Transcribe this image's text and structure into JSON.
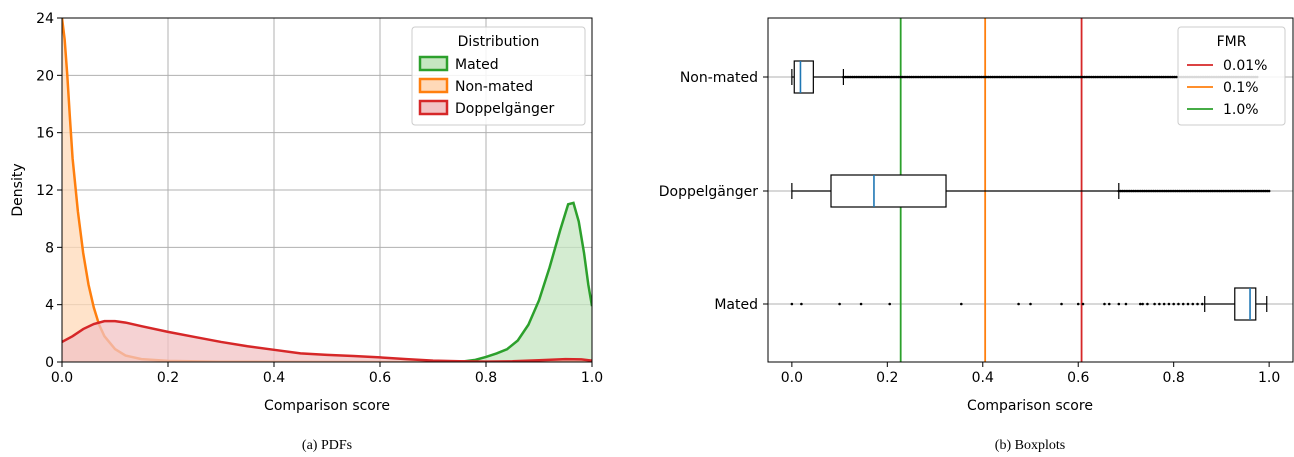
{
  "chart_data": [
    {
      "type": "area",
      "caption": "(a)  PDFs",
      "xlabel": "Comparison score",
      "ylabel": "Density",
      "xlim": [
        0,
        1
      ],
      "ylim": [
        0,
        24
      ],
      "xticks": [
        0,
        0.2,
        0.4,
        0.6,
        0.8,
        1.0
      ],
      "xtick_labels": [
        "0.0",
        "0.2",
        "0.4",
        "0.6",
        "0.8",
        "1.0"
      ],
      "yticks": [
        0,
        4,
        8,
        12,
        16,
        20,
        24
      ],
      "ytick_labels": [
        "0",
        "4",
        "8",
        "12",
        "16",
        "20",
        "24"
      ],
      "grid": true,
      "legend": {
        "title": "Distribution",
        "placement": "top-right"
      },
      "series": [
        {
          "name": "Mated",
          "color": "#2ca02c",
          "fill": "#c6e6c1",
          "points": [
            [
              0.74,
              0
            ],
            [
              0.76,
              0.05
            ],
            [
              0.78,
              0.15
            ],
            [
              0.8,
              0.35
            ],
            [
              0.82,
              0.6
            ],
            [
              0.84,
              0.9
            ],
            [
              0.86,
              1.5
            ],
            [
              0.88,
              2.6
            ],
            [
              0.9,
              4.3
            ],
            [
              0.92,
              6.6
            ],
            [
              0.94,
              9.2
            ],
            [
              0.955,
              11.0
            ],
            [
              0.965,
              11.1
            ],
            [
              0.975,
              9.8
            ],
            [
              0.985,
              7.6
            ],
            [
              0.993,
              5.4
            ],
            [
              1.0,
              3.9
            ]
          ]
        },
        {
          "name": "Non-mated",
          "color": "#ff7f0e",
          "fill": "#ffd9b8",
          "points": [
            [
              0.0,
              24
            ],
            [
              0.005,
              22.5
            ],
            [
              0.01,
              20
            ],
            [
              0.015,
              17
            ],
            [
              0.02,
              14.2
            ],
            [
              0.03,
              10.5
            ],
            [
              0.04,
              7.6
            ],
            [
              0.05,
              5.4
            ],
            [
              0.06,
              3.8
            ],
            [
              0.07,
              2.6
            ],
            [
              0.08,
              1.8
            ],
            [
              0.1,
              0.9
            ],
            [
              0.12,
              0.45
            ],
            [
              0.15,
              0.2
            ],
            [
              0.2,
              0.08
            ],
            [
              0.3,
              0.02
            ],
            [
              0.4,
              0.01
            ],
            [
              0.6,
              0
            ],
            [
              1.0,
              0
            ]
          ]
        },
        {
          "name": "Doppelgänger",
          "color": "#d62728",
          "fill": "#f2c3c4",
          "points": [
            [
              0.0,
              1.4
            ],
            [
              0.02,
              1.8
            ],
            [
              0.04,
              2.3
            ],
            [
              0.06,
              2.65
            ],
            [
              0.08,
              2.85
            ],
            [
              0.1,
              2.85
            ],
            [
              0.12,
              2.75
            ],
            [
              0.15,
              2.5
            ],
            [
              0.2,
              2.1
            ],
            [
              0.25,
              1.75
            ],
            [
              0.3,
              1.4
            ],
            [
              0.35,
              1.1
            ],
            [
              0.4,
              0.85
            ],
            [
              0.45,
              0.6
            ],
            [
              0.5,
              0.5
            ],
            [
              0.55,
              0.42
            ],
            [
              0.6,
              0.32
            ],
            [
              0.65,
              0.2
            ],
            [
              0.7,
              0.1
            ],
            [
              0.75,
              0.05
            ],
            [
              0.8,
              0.03
            ],
            [
              0.85,
              0.05
            ],
            [
              0.9,
              0.12
            ],
            [
              0.95,
              0.2
            ],
            [
              0.98,
              0.18
            ],
            [
              1.0,
              0.1
            ]
          ]
        }
      ]
    },
    {
      "type": "boxplot",
      "caption": "(b)  Boxplots",
      "xlabel": "Comparison score",
      "xlim": [
        -0.05,
        1.05
      ],
      "xticks": [
        0,
        0.2,
        0.4,
        0.6,
        0.8,
        1.0
      ],
      "xtick_labels": [
        "0.0",
        "0.2",
        "0.4",
        "0.6",
        "0.8",
        "1.0"
      ],
      "categories": [
        "Non-mated",
        "Doppelgänger",
        "Mated"
      ],
      "grid": "horizontal",
      "legend": {
        "title": "FMR",
        "placement": "top-right"
      },
      "thresholds": [
        {
          "name": "0.01%",
          "value": 0.607,
          "color": "#d62728"
        },
        {
          "name": "0.1%",
          "value": 0.405,
          "color": "#ff7f0e"
        },
        {
          "name": "1.0%",
          "value": 0.228,
          "color": "#2ca02c"
        }
      ],
      "boxes": [
        {
          "category": "Non-mated",
          "whisker_low": 0.0,
          "q1": 0.005,
          "median": 0.018,
          "q3": 0.045,
          "whisker_high": 0.108,
          "outlier_range": [
            0.108,
            0.975
          ]
        },
        {
          "category": "Doppelgänger",
          "whisker_low": 0.0,
          "q1": 0.082,
          "median": 0.172,
          "q3": 0.323,
          "whisker_high": 0.685,
          "outlier_range": [
            0.685,
            1.0
          ]
        },
        {
          "category": "Mated",
          "whisker_low": 0.865,
          "q1": 0.928,
          "median": 0.96,
          "q3": 0.972,
          "whisker_high": 0.995,
          "outliers": [
            0.0,
            0.02,
            0.1,
            0.145,
            0.205,
            0.355,
            0.475,
            0.5,
            0.565,
            0.6,
            0.61,
            0.655,
            0.665,
            0.685,
            0.7,
            0.73,
            0.735,
            0.745,
            0.76,
            0.77,
            0.78,
            0.79,
            0.8,
            0.81,
            0.82,
            0.83,
            0.84,
            0.85,
            0.86
          ]
        }
      ]
    }
  ]
}
